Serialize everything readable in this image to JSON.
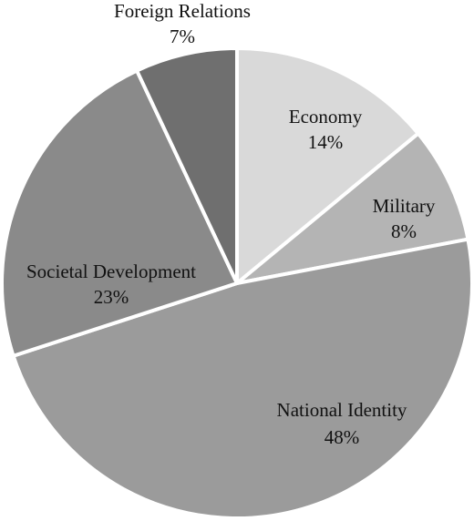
{
  "chart_data": {
    "type": "pie",
    "categories": [
      "Economy",
      "Military",
      "National Identity",
      "Societal Development",
      "Foreign Relations"
    ],
    "values": [
      14,
      8,
      48,
      23,
      7
    ],
    "value_labels": [
      "14%",
      "8%",
      "48%",
      "23%",
      "7%"
    ],
    "colors": [
      "#d9d9d9",
      "#b4b4b4",
      "#9b9b9b",
      "#8a8a8a",
      "#6f6f6f"
    ]
  }
}
